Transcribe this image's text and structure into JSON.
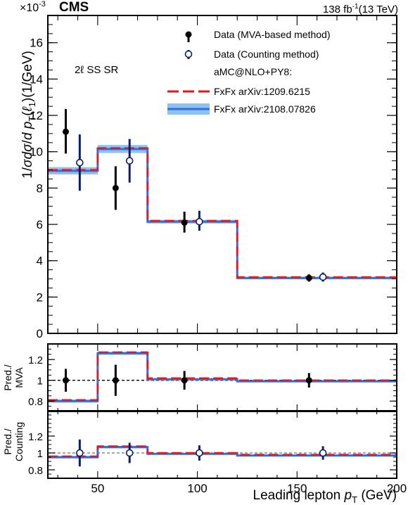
{
  "header": {
    "experiment": "CMS",
    "lumi": "138 fb",
    "lumi_exp": "-1",
    "energy": "(13 TeV)",
    "scale_base": "×10",
    "scale_exp": "-3"
  },
  "region_label": "2ℓ SS SR",
  "legend": {
    "data_mva": "Data (MVA-based method)",
    "data_counting": "Data (Counting method)",
    "generator_header": "aMC@NLO+PY8:",
    "fxfx_old": "FxFx arXiv:1209.6215",
    "fxfx_new": "FxFx arXiv:2108.07826"
  },
  "colors": {
    "fxfx_old": "#e8151b",
    "fxfx_new": "#2f6fe0",
    "fxfx_new_band": "#8cc2ef",
    "data_mva": "#000000",
    "data_counting_edge": "#0b1f66",
    "counting_errbar": "#0b1f66",
    "ratio_ref_mva": "#000000",
    "ratio_ref_counting": "#888888"
  },
  "chart_data": [
    {
      "panel": "main",
      "type": "line",
      "ylabel": "1/σ dσ/d p_T(ℓ_1) (1/GeV)",
      "ylabel_parts": [
        "1/",
        "σ",
        "d",
        "σ",
        "/",
        "d ",
        "p",
        "T",
        "(",
        "ℓ",
        "1",
        ")(1/GeV)"
      ],
      "xlim": [
        25,
        200
      ],
      "ylim": [
        0,
        17.5
      ],
      "yscale_factor": "1e-3",
      "ytick_labels": [
        "0",
        "2",
        "4",
        "6",
        "8",
        "10",
        "12",
        "14",
        "16"
      ],
      "bins": [
        [
          25,
          50
        ],
        [
          50,
          75
        ],
        [
          75,
          120
        ],
        [
          120,
          200
        ]
      ],
      "series": [
        {
          "name": "FxFx arXiv:1209.6215",
          "style": "step-dashed",
          "values": [
            9.0,
            10.2,
            6.2,
            3.1
          ]
        },
        {
          "name": "FxFx arXiv:2108.07826",
          "style": "step-band",
          "values": [
            8.95,
            10.15,
            6.15,
            3.05
          ],
          "band_halfwidth": [
            0.2,
            0.22,
            0.1,
            0.07
          ]
        },
        {
          "name": "Data (MVA-based method)",
          "style": "points-filled",
          "x": [
            34,
            59,
            93.5,
            156
          ],
          "y": [
            11.1,
            8.0,
            6.1,
            3.05
          ],
          "yerr_low": [
            1.2,
            1.2,
            0.55,
            0.2
          ],
          "yerr_high": [
            1.25,
            1.2,
            0.6,
            0.2
          ]
        },
        {
          "name": "Data (Counting method)",
          "style": "points-open",
          "x": [
            41,
            66,
            101,
            163
          ],
          "y": [
            9.4,
            9.5,
            6.15,
            3.1
          ],
          "yerr_low": [
            1.55,
            1.2,
            0.5,
            0.25
          ],
          "yerr_high": [
            1.55,
            1.2,
            0.6,
            0.25
          ]
        }
      ]
    },
    {
      "panel": "ratio_mva",
      "type": "line",
      "ylabel_lines": [
        "Pred./",
        "MVA"
      ],
      "xlim": [
        25,
        200
      ],
      "ylim": [
        0.7,
        1.35
      ],
      "ytick_labels": [
        "0.8",
        "1",
        "1.2"
      ],
      "reference": 1.0,
      "bins": [
        [
          25,
          50
        ],
        [
          50,
          75
        ],
        [
          75,
          120
        ],
        [
          120,
          200
        ]
      ],
      "series": [
        {
          "name": "FxFx arXiv:1209.6215",
          "values": [
            0.81,
            1.27,
            1.02,
            1.0
          ]
        },
        {
          "name": "FxFx arXiv:2108.07826",
          "values": [
            0.8,
            1.26,
            1.01,
            0.99
          ],
          "band_halfwidth": [
            0.015,
            0.015,
            0.01,
            0.01
          ]
        },
        {
          "name": "Data (MVA-based method)",
          "x": [
            34,
            59,
            93.5,
            156
          ],
          "y": [
            1.0,
            1.0,
            1.0,
            1.0
          ],
          "yerr_low": [
            0.11,
            0.15,
            0.09,
            0.07
          ],
          "yerr_high": [
            0.11,
            0.15,
            0.09,
            0.07
          ]
        }
      ]
    },
    {
      "panel": "ratio_counting",
      "type": "line",
      "ylabel_lines": [
        "Pred./",
        "Counting"
      ],
      "xlim": [
        25,
        200
      ],
      "ylim": [
        0.7,
        1.5
      ],
      "ytick_labels": [
        "0.8",
        "1",
        "1.2"
      ],
      "reference": 1.0,
      "xtick_labels": [
        "50",
        "100",
        "150",
        "200"
      ],
      "xlabel": "Leading lepton",
      "xlabel_var": "p",
      "xlabel_sub": "T",
      "xlabel_unit": "(GeV)",
      "bins": [
        [
          25,
          50
        ],
        [
          50,
          75
        ],
        [
          75,
          120
        ],
        [
          120,
          200
        ]
      ],
      "series": [
        {
          "name": "FxFx arXiv:1209.6215",
          "values": [
            0.96,
            1.08,
            1.0,
            0.98
          ]
        },
        {
          "name": "FxFx arXiv:2108.07826",
          "values": [
            0.95,
            1.07,
            0.99,
            0.97
          ],
          "band_halfwidth": [
            0.015,
            0.015,
            0.01,
            0.01
          ]
        },
        {
          "name": "Data (Counting method)",
          "x": [
            41,
            66,
            101,
            163
          ],
          "y": [
            1.0,
            1.0,
            1.0,
            1.0
          ],
          "yerr_low": [
            0.16,
            0.12,
            0.09,
            0.08
          ],
          "yerr_high": [
            0.16,
            0.12,
            0.09,
            0.08
          ]
        }
      ]
    }
  ]
}
